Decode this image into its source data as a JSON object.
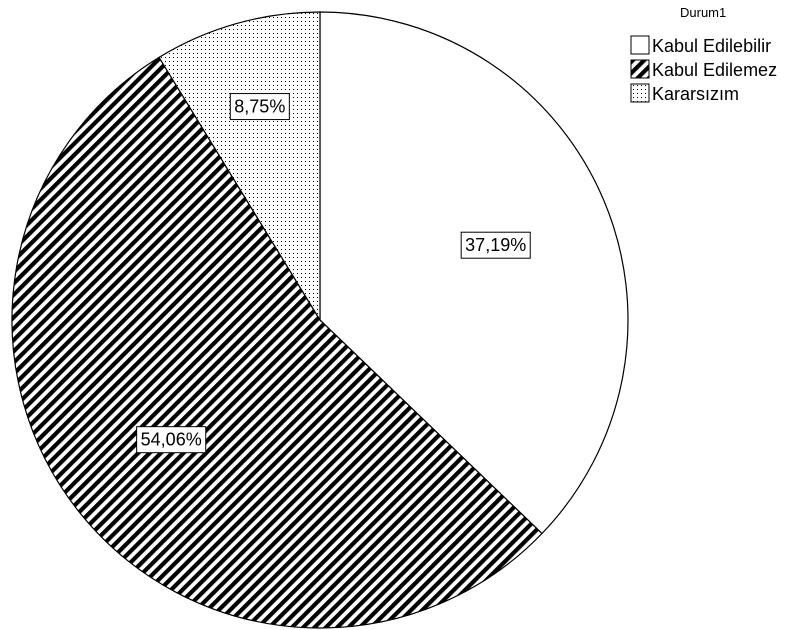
{
  "chart_data": {
    "type": "pie",
    "title": "",
    "legend_title": "Durum1",
    "legend_position": "top-right",
    "start_angle_deg": 0,
    "direction": "clockwise",
    "categories": [
      "Kabul Edilebilir",
      "Kabul Edilemez",
      "Kararsızım"
    ],
    "values": [
      37.19,
      54.06,
      8.75
    ],
    "labels": [
      "37,19%",
      "54,06%",
      "8,75%"
    ],
    "fills": [
      "solid-white",
      "diagonal-hatch",
      "dotted"
    ],
    "colors": {
      "background": "#ffffff",
      "outline": "#000000",
      "hatch": "#000000",
      "dots": "#000000"
    }
  }
}
